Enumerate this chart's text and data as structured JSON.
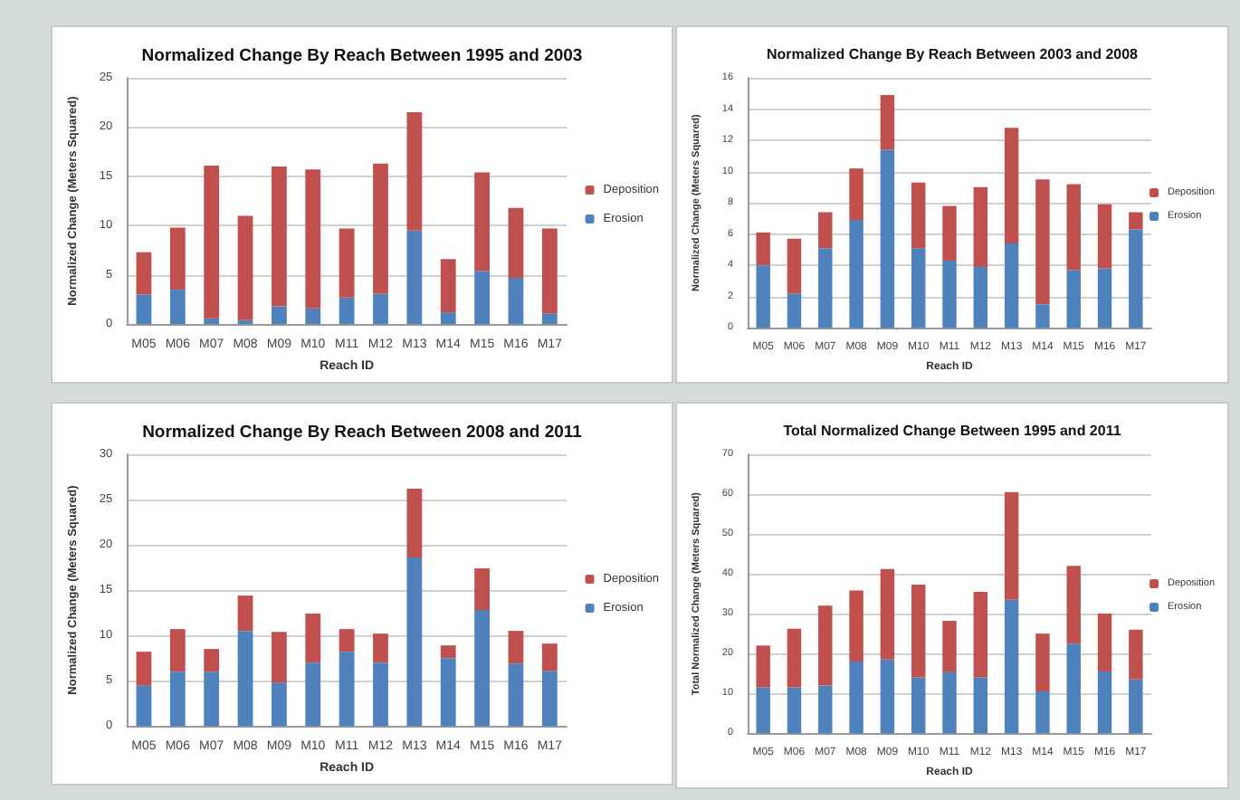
{
  "chart_data": [
    {
      "type": "bar",
      "title": "Normalized Change By Reach Between 1995 and 2003",
      "xlabel": "Reach ID",
      "ylabel": "Normalized Change (Meters Squared)",
      "categories": [
        "M05",
        "M06",
        "M07",
        "M08",
        "M09",
        "M10",
        "M11",
        "M12",
        "M13",
        "M14",
        "M15",
        "M16",
        "M17"
      ],
      "stacked": true,
      "ylim": [
        0,
        25
      ],
      "yticks": [
        0,
        5,
        10,
        15,
        20,
        25
      ],
      "grid": "y",
      "legend": "right",
      "series": [
        {
          "name": "Erosion",
          "color": "#4f81bd",
          "values": [
            3.0,
            3.5,
            0.6,
            0.4,
            1.8,
            1.6,
            2.7,
            3.1,
            9.5,
            1.2,
            5.4,
            4.7,
            1.1
          ]
        },
        {
          "name": "Deposition",
          "color": "#c0504d",
          "values": [
            4.3,
            6.3,
            15.5,
            10.6,
            14.2,
            14.1,
            7.0,
            13.2,
            12.0,
            5.4,
            10.0,
            7.1,
            8.6
          ]
        }
      ]
    },
    {
      "type": "bar",
      "title": "Normalized Change By Reach Between 2003 and 2008",
      "xlabel": "Reach ID",
      "ylabel": "Normalized Change (Meters Squared)",
      "categories": [
        "M05",
        "M06",
        "M07",
        "M08",
        "M09",
        "M10",
        "M11",
        "M12",
        "M13",
        "M14",
        "M15",
        "M16",
        "M17"
      ],
      "stacked": true,
      "ylim": [
        0,
        16
      ],
      "yticks": [
        0,
        2,
        4,
        6,
        8,
        10,
        12,
        14,
        16
      ],
      "grid": "y",
      "legend": "right",
      "series": [
        {
          "name": "Erosion",
          "color": "#4f81bd",
          "values": [
            4.0,
            2.2,
            5.1,
            6.9,
            11.4,
            5.1,
            4.3,
            3.9,
            5.4,
            1.5,
            3.7,
            3.8,
            6.3
          ]
        },
        {
          "name": "Deposition",
          "color": "#c0504d",
          "values": [
            2.1,
            3.5,
            2.3,
            3.3,
            3.5,
            4.2,
            3.5,
            5.1,
            7.4,
            8.0,
            5.5,
            4.1,
            1.1
          ]
        }
      ]
    },
    {
      "type": "bar",
      "title": "Normalized Change By Reach Between 2008 and 2011",
      "xlabel": "Reach ID",
      "ylabel": "Normalized Change (Meters Squared)",
      "categories": [
        "M05",
        "M06",
        "M07",
        "M08",
        "M09",
        "M10",
        "M11",
        "M12",
        "M13",
        "M14",
        "M15",
        "M16",
        "M17"
      ],
      "stacked": true,
      "ylim": [
        0,
        30
      ],
      "yticks": [
        0,
        5,
        10,
        15,
        20,
        25,
        30
      ],
      "grid": "y",
      "legend": "right",
      "series": [
        {
          "name": "Erosion",
          "color": "#4f81bd",
          "values": [
            4.5,
            6.0,
            6.0,
            10.5,
            4.8,
            7.0,
            8.2,
            7.0,
            18.6,
            7.5,
            12.8,
            6.9,
            6.1
          ]
        },
        {
          "name": "Deposition",
          "color": "#c0504d",
          "values": [
            3.7,
            4.7,
            2.5,
            3.9,
            5.6,
            5.4,
            2.5,
            3.2,
            7.6,
            1.4,
            4.6,
            3.6,
            3.0
          ]
        }
      ]
    },
    {
      "type": "bar",
      "title": "Total Normalized Change Between 1995 and 2011",
      "xlabel": "Reach ID",
      "ylabel": "Total Normalized Change (Meters Squared)",
      "categories": [
        "M05",
        "M06",
        "M07",
        "M08",
        "M09",
        "M10",
        "M11",
        "M12",
        "M13",
        "M14",
        "M15",
        "M16",
        "M17"
      ],
      "stacked": true,
      "ylim": [
        0,
        70
      ],
      "yticks": [
        0,
        10,
        20,
        30,
        40,
        50,
        60,
        70
      ],
      "grid": "y",
      "legend": "right",
      "series": [
        {
          "name": "Erosion",
          "color": "#4f81bd",
          "values": [
            11.5,
            11.5,
            12,
            18,
            18.5,
            14,
            15.3,
            14,
            33.5,
            10.5,
            22.5,
            15.5,
            13.5
          ]
        },
        {
          "name": "Deposition",
          "color": "#c0504d",
          "values": [
            10.5,
            14.7,
            20,
            17.8,
            22.7,
            23.3,
            12.9,
            21.5,
            27,
            14.5,
            19.5,
            14.5,
            12.5
          ]
        }
      ]
    }
  ]
}
